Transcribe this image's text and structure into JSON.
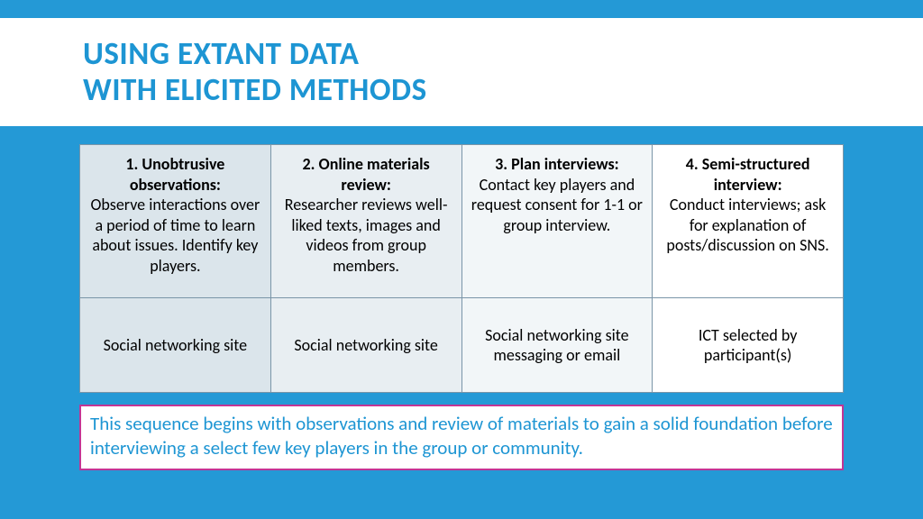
{
  "colors": {
    "accent_blue": "#2499d6",
    "title_blue": "#1d95d3",
    "caption_border": "#c33594",
    "caption_text": "#1d95d3",
    "cell_border": "#7a95a8",
    "shade1": "#dbe5eb",
    "shade2": "#e8eef2",
    "shade3": "#f2f6f8",
    "shade4": "#ffffff"
  },
  "title": {
    "line1": "USING EXTANT DATA",
    "line2": "WITH ELICITED METHODS",
    "fontsize": 35,
    "weight": 700
  },
  "table": {
    "columns": 4,
    "rows": 2,
    "cell_fontsize": 18,
    "row1": [
      {
        "title": "1. Unobtrusive observations:",
        "body": "Observe interactions over a period of time to learn about issues. Identify key players."
      },
      {
        "title": "2. Online materials review:",
        "body": "Researcher reviews well-liked texts, images and videos from group members."
      },
      {
        "title": "3. Plan interviews:",
        "body": "Contact key players and request consent for 1-1 or group interview."
      },
      {
        "title": "4. Semi-structured interview:",
        "body": "Conduct interviews; ask for explanation of posts/discussion on SNS."
      }
    ],
    "row2": [
      "Social networking site",
      "Social networking site",
      "Social networking site messaging or email",
      "ICT selected by participant(s)"
    ]
  },
  "caption": "This sequence begins with observations and review of materials to gain a solid foundation before interviewing a select few key players in the group or community."
}
